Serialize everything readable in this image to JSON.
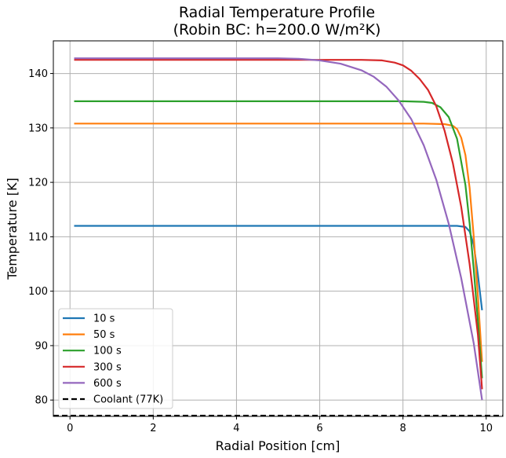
{
  "chart_data": {
    "type": "line",
    "title_line1": "Radial Temperature Profile",
    "title_line2": "(Robin BC: h=200.0 W/m²K)",
    "xlabel": "Radial Position [cm]",
    "ylabel": "Temperature [K]",
    "xlim": [
      -0.4,
      10.4
    ],
    "ylim": [
      77,
      146
    ],
    "xticks": [
      0,
      2,
      4,
      6,
      8,
      10
    ],
    "yticks": [
      80,
      90,
      100,
      110,
      120,
      130,
      140
    ],
    "grid": true,
    "legend_position": "lower-left",
    "series": [
      {
        "name": "10 s",
        "color": "#1f77b4",
        "x": [
          0.1,
          9.0,
          9.3,
          9.5,
          9.6,
          9.7,
          9.8,
          9.9
        ],
        "y": [
          112.0,
          112.0,
          112.0,
          111.8,
          111.0,
          108.5,
          103.0,
          96.5
        ]
      },
      {
        "name": "50 s",
        "color": "#ff7f0e",
        "x": [
          0.1,
          8.5,
          9.0,
          9.2,
          9.3,
          9.4,
          9.5,
          9.6,
          9.7,
          9.8,
          9.9
        ],
        "y": [
          130.8,
          130.8,
          130.7,
          130.4,
          129.8,
          128.2,
          125.0,
          119.0,
          110.0,
          99.0,
          87.0
        ]
      },
      {
        "name": "100 s",
        "color": "#2ca02c",
        "x": [
          0.1,
          8.0,
          8.5,
          8.7,
          8.9,
          9.1,
          9.3,
          9.5,
          9.6,
          9.7,
          9.8,
          9.9
        ],
        "y": [
          134.9,
          134.9,
          134.8,
          134.6,
          133.8,
          132.0,
          128.0,
          119.5,
          112.5,
          104.0,
          94.5,
          84.0
        ]
      },
      {
        "name": "300 s",
        "color": "#d62728",
        "x": [
          0.1,
          6.5,
          7.0,
          7.5,
          7.8,
          8.0,
          8.2,
          8.4,
          8.6,
          8.8,
          9.0,
          9.2,
          9.4,
          9.6,
          9.8,
          9.9
        ],
        "y": [
          142.5,
          142.5,
          142.5,
          142.4,
          142.0,
          141.5,
          140.5,
          139.0,
          137.0,
          134.0,
          129.5,
          123.5,
          115.5,
          105.0,
          92.0,
          82.0
        ]
      },
      {
        "name": "600 s",
        "color": "#9467bd",
        "x": [
          0.1,
          4.0,
          5.0,
          5.5,
          6.0,
          6.5,
          7.0,
          7.3,
          7.6,
          7.9,
          8.2,
          8.5,
          8.8,
          9.1,
          9.4,
          9.7,
          9.9
        ],
        "y": [
          142.8,
          142.8,
          142.8,
          142.7,
          142.4,
          141.8,
          140.6,
          139.4,
          137.6,
          135.0,
          131.6,
          126.8,
          120.5,
          112.4,
          102.4,
          90.4,
          80.0
        ]
      }
    ],
    "reference_lines": [
      {
        "name": "Coolant (77K)",
        "y": 77,
        "color": "#000000",
        "style": "dashed"
      }
    ]
  }
}
